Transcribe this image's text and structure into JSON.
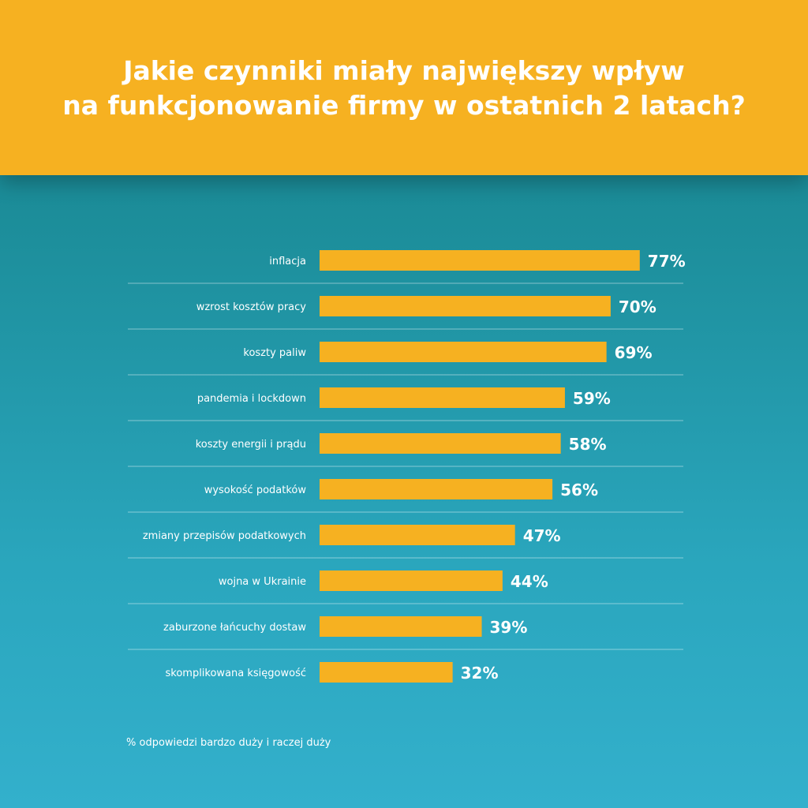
{
  "header": {
    "title": "Jakie czynniki miały największy wpływ\nna funkcjonowanie firmy w ostatnich 2 latach?"
  },
  "footnote": "% odpowiedzi bardzo duży i raczej duży",
  "colors": {
    "header_bg": "#f6b121",
    "bar": "#f6b121",
    "text": "#ffffff",
    "divider": "#ffffff"
  },
  "chart_data": {
    "type": "bar",
    "orientation": "horizontal",
    "categories": [
      "inflacja",
      "wzrost kosztów pracy",
      "koszty paliw",
      "pandemia i lockdown",
      "koszty energii i prądu",
      "wysokość podatków",
      "zmiany przepisów podatkowych",
      "wojna w Ukrainie",
      "zaburzone łańcuchy dostaw",
      "skomplikowana księgowość"
    ],
    "values": [
      77,
      70,
      69,
      59,
      58,
      56,
      47,
      44,
      39,
      32
    ],
    "value_labels": [
      "77%",
      "70%",
      "69%",
      "59%",
      "58%",
      "56%",
      "47%",
      "44%",
      "39%",
      "32%"
    ],
    "unit": "%",
    "xlim": [
      0,
      100
    ],
    "grid": false,
    "legend": "none"
  }
}
